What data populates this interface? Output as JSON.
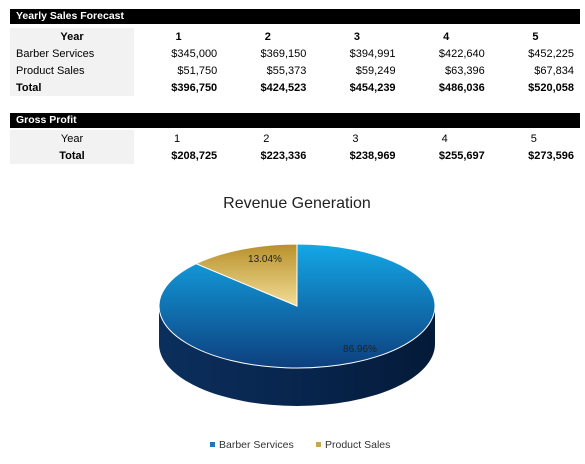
{
  "forecast": {
    "title": "Yearly Sales Forecast",
    "header": [
      "Year",
      "1",
      "2",
      "3",
      "4",
      "5"
    ],
    "rows": [
      {
        "label": "Barber Services",
        "values": [
          "$345,000",
          "$369,150",
          "$394,991",
          "$422,640",
          "$452,225"
        ]
      },
      {
        "label": "Product Sales",
        "values": [
          "$51,750",
          "$55,373",
          "$59,249",
          "$63,396",
          "$67,834"
        ]
      },
      {
        "label": "Total",
        "values": [
          "$396,750",
          "$424,523",
          "$454,239",
          "$486,036",
          "$520,058"
        ]
      }
    ]
  },
  "gross_profit": {
    "title": "Gross Profit",
    "header": [
      "Year",
      "1",
      "2",
      "3",
      "4",
      "5"
    ],
    "total": {
      "label": "Total",
      "values": [
        "$208,725",
        "$223,336",
        "$238,969",
        "$255,697",
        "$273,596"
      ]
    }
  },
  "chart_data": {
    "type": "pie",
    "title": "Revenue Generation",
    "categories": [
      "Barber Services",
      "Product Sales"
    ],
    "values": [
      86.96,
      13.04
    ],
    "labels": [
      "86.96%",
      "13.04%"
    ],
    "colors": [
      "#1a78c2",
      "#c9a84c"
    ],
    "legend": "bottom"
  }
}
